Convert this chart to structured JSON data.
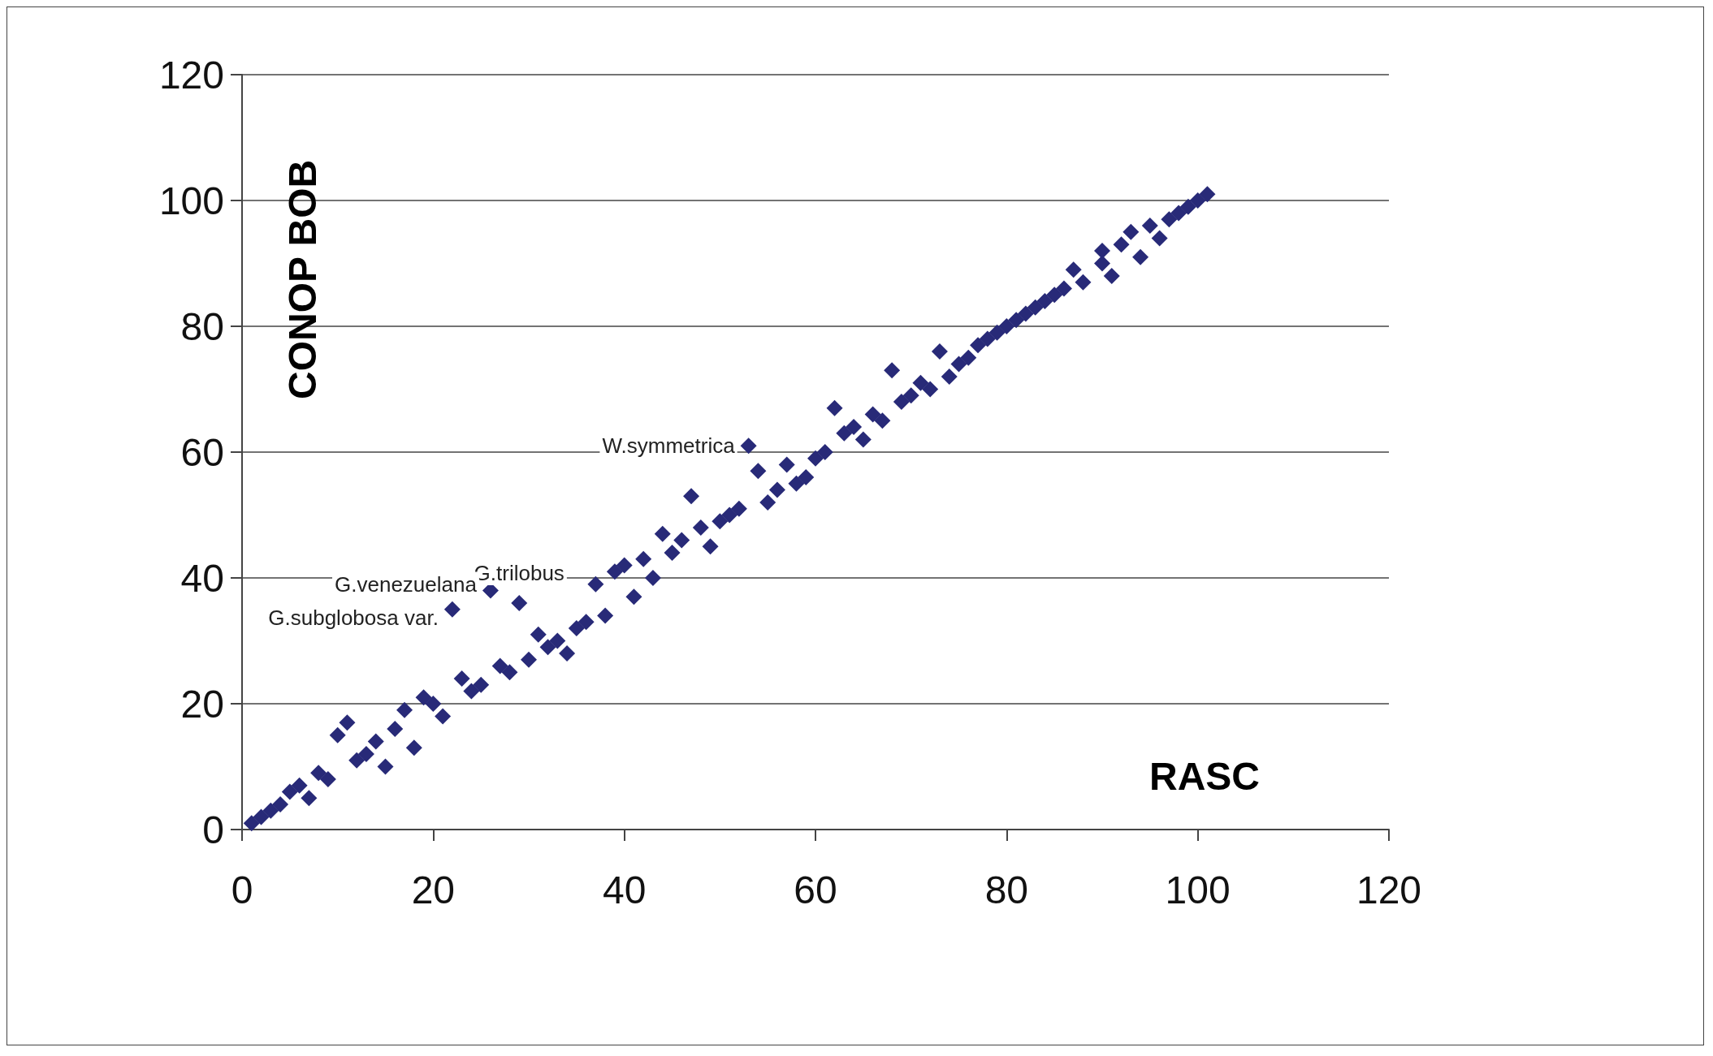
{
  "chart_data": {
    "type": "scatter",
    "xlabel": "RASC",
    "ylabel": "CONOP BOB",
    "x": [
      1,
      2,
      3,
      4,
      5,
      6,
      7,
      8,
      9,
      10,
      11,
      12,
      13,
      14,
      15,
      16,
      17,
      18,
      19,
      20,
      21,
      22,
      23,
      24,
      25,
      26,
      27,
      28,
      29,
      30,
      31,
      32,
      33,
      34,
      35,
      36,
      37,
      38,
      39,
      40,
      41,
      42,
      43,
      44,
      45,
      46,
      47,
      48,
      49,
      50,
      51,
      52,
      53,
      54,
      55,
      56,
      57,
      58,
      59,
      60,
      61,
      62,
      63,
      64,
      65,
      66,
      67,
      68,
      69,
      70,
      71,
      72,
      73,
      74,
      75,
      76,
      77,
      78,
      79,
      80,
      81,
      82,
      83,
      84,
      85,
      86,
      87,
      88,
      90,
      90,
      91,
      92,
      93,
      94,
      95,
      96,
      97,
      98,
      99,
      100,
      101
    ],
    "values": [
      1,
      2,
      3,
      4,
      6,
      7,
      5,
      9,
      8,
      15,
      17,
      11,
      12,
      14,
      10,
      16,
      19,
      13,
      21,
      20,
      18,
      35,
      24,
      22,
      23,
      38,
      26,
      25,
      36,
      27,
      31,
      29,
      30,
      28,
      32,
      33,
      39,
      34,
      41,
      42,
      37,
      43,
      40,
      47,
      44,
      46,
      53,
      48,
      45,
      49,
      50,
      51,
      61,
      57,
      52,
      54,
      58,
      55,
      56,
      59,
      60,
      67,
      63,
      64,
      62,
      66,
      65,
      73,
      68,
      69,
      71,
      70,
      76,
      72,
      74,
      75,
      77,
      78,
      79,
      80,
      81,
      82,
      83,
      84,
      85,
      86,
      89,
      87,
      92,
      90,
      88,
      93,
      95,
      91,
      96,
      94,
      97,
      98,
      99,
      100,
      101
    ],
    "color": "#282a78",
    "marker": "diamond",
    "xlim": [
      0,
      120
    ],
    "xticks": [
      0,
      20,
      40,
      60,
      80,
      100,
      120
    ],
    "ylim": [
      0,
      120
    ],
    "yticks": [
      0,
      20,
      40,
      60,
      80,
      100,
      120
    ],
    "grid": "y",
    "annotations": [
      {
        "text": "W.symmetrica",
        "x": 53,
        "y": 61
      },
      {
        "text": "G.trilobus",
        "x": 29,
        "y": 36
      },
      {
        "text": "G.venezuelana",
        "x": 26,
        "y": 38
      },
      {
        "text": "G.subglobosa var.",
        "x": 22,
        "y": 35
      }
    ]
  }
}
